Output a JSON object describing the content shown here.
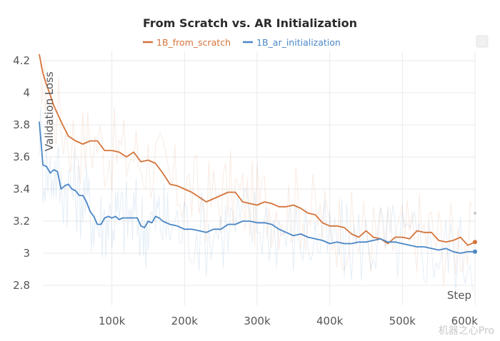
{
  "chart_data": {
    "type": "line",
    "title": "From Scratch vs. AR Initialization",
    "xlabel": "Step",
    "ylabel": "Validation Loss",
    "xlim": [
      0,
      600000
    ],
    "ylim": [
      2.7,
      4.25
    ],
    "x_ticks": [
      100000,
      200000,
      300000,
      400000,
      500000,
      600000
    ],
    "x_tick_labels": [
      "100k",
      "200k",
      "300k",
      "400k",
      "500k",
      "600k"
    ],
    "y_ticks": [
      2.8,
      3,
      3.2,
      3.4,
      3.6,
      3.8,
      4,
      4.2
    ],
    "y_tick_labels": [
      "2.8",
      "3",
      "3.2",
      "3.4",
      "3.6",
      "3.8",
      "4",
      "4.2"
    ],
    "legend_position": "top-center",
    "series": [
      {
        "name": "1B_from_scratch",
        "color": "#d4733a",
        "x": [
          0,
          5000,
          10000,
          20000,
          30000,
          40000,
          50000,
          60000,
          70000,
          80000,
          90000,
          100000,
          110000,
          120000,
          130000,
          140000,
          150000,
          160000,
          170000,
          180000,
          190000,
          200000,
          210000,
          220000,
          230000,
          240000,
          250000,
          260000,
          270000,
          280000,
          290000,
          300000,
          310000,
          320000,
          330000,
          340000,
          350000,
          360000,
          370000,
          380000,
          390000,
          400000,
          410000,
          420000,
          430000,
          440000,
          450000,
          460000,
          470000,
          480000,
          490000,
          500000,
          510000,
          520000,
          530000,
          540000,
          550000,
          560000,
          570000,
          580000,
          590000,
          600000
        ],
        "values": [
          4.24,
          4.12,
          4.05,
          3.92,
          3.82,
          3.73,
          3.7,
          3.68,
          3.7,
          3.7,
          3.64,
          3.64,
          3.63,
          3.6,
          3.63,
          3.57,
          3.58,
          3.56,
          3.5,
          3.43,
          3.42,
          3.4,
          3.38,
          3.35,
          3.32,
          3.34,
          3.36,
          3.38,
          3.38,
          3.32,
          3.31,
          3.3,
          3.32,
          3.31,
          3.29,
          3.29,
          3.3,
          3.28,
          3.25,
          3.24,
          3.19,
          3.17,
          3.17,
          3.16,
          3.12,
          3.1,
          3.14,
          3.1,
          3.09,
          3.06,
          3.1,
          3.1,
          3.09,
          3.14,
          3.13,
          3.13,
          3.08,
          3.07,
          3.08,
          3.1,
          3.05,
          3.07
        ]
      },
      {
        "name": "1B_ar_initialization",
        "color": "#4a86c5",
        "x": [
          0,
          5000,
          10000,
          15000,
          20000,
          25000,
          30000,
          35000,
          40000,
          45000,
          50000,
          55000,
          60000,
          65000,
          70000,
          75000,
          80000,
          85000,
          90000,
          95000,
          100000,
          105000,
          110000,
          115000,
          120000,
          125000,
          130000,
          135000,
          140000,
          145000,
          150000,
          155000,
          160000,
          165000,
          170000,
          175000,
          180000,
          190000,
          200000,
          210000,
          220000,
          230000,
          240000,
          250000,
          260000,
          270000,
          280000,
          290000,
          300000,
          310000,
          320000,
          330000,
          340000,
          350000,
          360000,
          370000,
          380000,
          390000,
          400000,
          410000,
          420000,
          430000,
          440000,
          450000,
          460000,
          470000,
          480000,
          490000,
          500000,
          510000,
          520000,
          530000,
          540000,
          550000,
          560000,
          570000,
          580000,
          590000,
          600000
        ],
        "values": [
          3.82,
          3.55,
          3.54,
          3.5,
          3.52,
          3.51,
          3.4,
          3.42,
          3.43,
          3.4,
          3.39,
          3.36,
          3.36,
          3.32,
          3.26,
          3.23,
          3.18,
          3.18,
          3.22,
          3.23,
          3.22,
          3.23,
          3.21,
          3.22,
          3.22,
          3.22,
          3.22,
          3.22,
          3.17,
          3.16,
          3.2,
          3.19,
          3.23,
          3.22,
          3.2,
          3.19,
          3.18,
          3.17,
          3.15,
          3.15,
          3.14,
          3.13,
          3.15,
          3.15,
          3.18,
          3.18,
          3.2,
          3.2,
          3.19,
          3.19,
          3.18,
          3.15,
          3.13,
          3.11,
          3.12,
          3.1,
          3.09,
          3.08,
          3.06,
          3.07,
          3.06,
          3.06,
          3.07,
          3.07,
          3.08,
          3.09,
          3.07,
          3.07,
          3.06,
          3.05,
          3.04,
          3.04,
          3.03,
          3.02,
          3.03,
          3.01,
          3.0,
          3.01,
          3.01
        ]
      }
    ]
  },
  "watermark": "机器之心Pro"
}
